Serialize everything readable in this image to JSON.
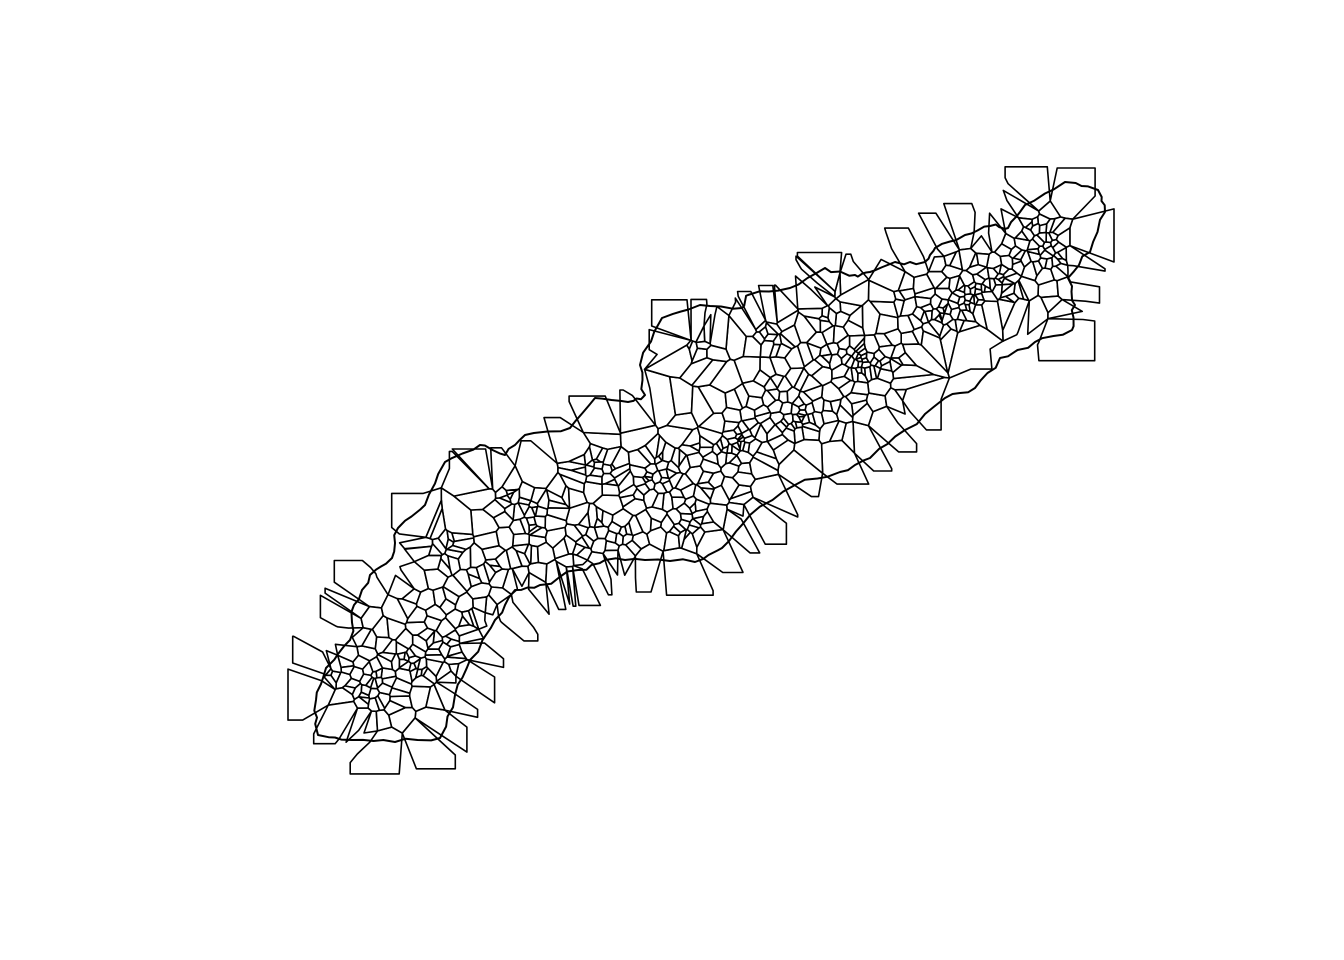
{
  "figure": {
    "kind": "tessellation",
    "description_visible_text": "",
    "stroke_color": "#000000",
    "fill_color": "#ffffff",
    "background_color": "#ffffff"
  }
}
